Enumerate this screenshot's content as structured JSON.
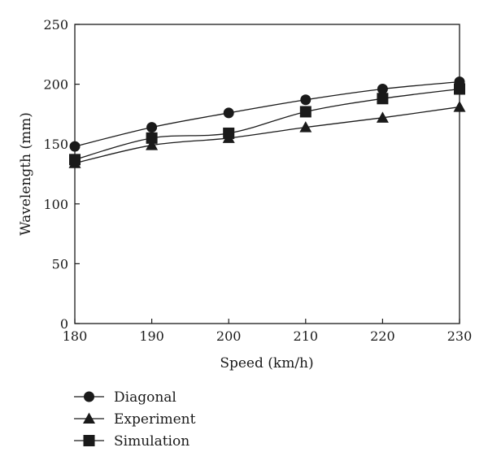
{
  "chart_data": {
    "type": "line",
    "xlabel": "Speed (km/h)",
    "ylabel": "Wavelength (mm)",
    "x": [
      180,
      190,
      200,
      210,
      220,
      230
    ],
    "xlim": [
      180,
      230
    ],
    "ylim": [
      0,
      250
    ],
    "x_ticks": [
      180,
      190,
      200,
      210,
      220,
      230
    ],
    "y_ticks": [
      0,
      50,
      100,
      150,
      200,
      250
    ],
    "grid": false,
    "legend_position": "bottom-left, below plot",
    "series": [
      {
        "name": "Diagonal",
        "marker": "circle",
        "values": [
          148,
          164,
          176,
          187,
          196,
          202
        ]
      },
      {
        "name": "Experiment",
        "marker": "triangle",
        "values": [
          134,
          149,
          155,
          164,
          172,
          181
        ]
      },
      {
        "name": "Simulation",
        "marker": "square",
        "values": [
          137,
          155,
          159,
          177,
          188,
          196
        ]
      }
    ]
  }
}
